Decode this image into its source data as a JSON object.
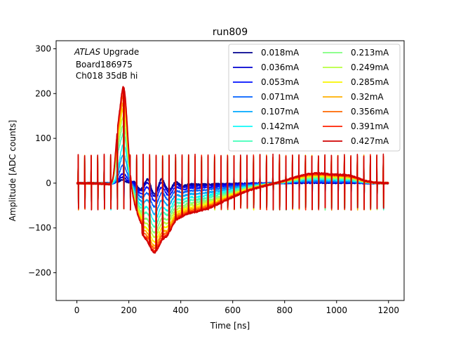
{
  "chart_data": {
    "type": "line",
    "title": "run809",
    "xlabel": "Time [ns]",
    "ylabel": "Amplitude [ADC counts]",
    "xlim": [
      -80,
      1260
    ],
    "ylim": [
      -262,
      318
    ],
    "xticks": [
      0,
      200,
      400,
      600,
      800,
      1000,
      1200
    ],
    "xtick_labels": [
      "0",
      "200",
      "400",
      "600",
      "800",
      "1000",
      "1200"
    ],
    "yticks": [
      -200,
      -100,
      0,
      100,
      200,
      300
    ],
    "ytick_labels": [
      "−200",
      "−100",
      "0",
      "100",
      "200",
      "300"
    ],
    "grid": false,
    "legend_position": "upper-right",
    "legend_columns": 2,
    "annotation": {
      "line1_italic": "ATLAS",
      "line1_rest": " Upgrade",
      "line2": " Board186975",
      "line3": " Ch018 35dB hi"
    },
    "pulse_model": {
      "period_ns": 25,
      "x_start": 0,
      "x_end": 1200,
      "spike_start": 5
    },
    "series": [
      {
        "name": "0.018mA",
        "color": "#00008f",
        "peak": 8,
        "undershoot": -5,
        "ringing": 42,
        "spike_high": 52,
        "spike_low": -55
      },
      {
        "name": "0.036mA",
        "color": "#0000d0",
        "peak": 15,
        "undershoot": -10,
        "ringing": 40,
        "spike_high": 50,
        "spike_low": -55
      },
      {
        "name": "0.053mA",
        "color": "#0010ff",
        "peak": 25,
        "undershoot": -18,
        "ringing": 38,
        "spike_high": 50,
        "spike_low": -55
      },
      {
        "name": "0.071mA",
        "color": "#0060ff",
        "peak": 45,
        "undershoot": -28,
        "ringing": 36,
        "spike_high": 52,
        "spike_low": -56
      },
      {
        "name": "0.107mA",
        "color": "#00a8ff",
        "peak": 70,
        "undershoot": -40,
        "ringing": 34,
        "spike_high": 55,
        "spike_low": -56
      },
      {
        "name": "0.142mA",
        "color": "#0ff8f8",
        "peak": 95,
        "undershoot": -52,
        "ringing": 32,
        "spike_high": 55,
        "spike_low": -57
      },
      {
        "name": "0.178mA",
        "color": "#40ffb8",
        "peak": 120,
        "undershoot": -62,
        "ringing": 30,
        "spike_high": 55,
        "spike_low": -57
      },
      {
        "name": "0.213mA",
        "color": "#7fff7f",
        "peak": 140,
        "undershoot": -72,
        "ringing": 28,
        "spike_high": 57,
        "spike_low": -57
      },
      {
        "name": "0.249mA",
        "color": "#b8ff40",
        "peak": 160,
        "undershoot": -80,
        "ringing": 26,
        "spike_high": 58,
        "spike_low": -57
      },
      {
        "name": "0.285mA",
        "color": "#f8f500",
        "peak": 180,
        "undershoot": -88,
        "ringing": 24,
        "spike_high": 60,
        "spike_low": -57
      },
      {
        "name": "0.32mA",
        "color": "#ffb000",
        "peak": 195,
        "undershoot": -95,
        "ringing": 22,
        "spike_high": 60,
        "spike_low": -57
      },
      {
        "name": "0.356mA",
        "color": "#ff6800",
        "peak": 210,
        "undershoot": -100,
        "ringing": 20,
        "spike_high": 60,
        "spike_low": -57
      },
      {
        "name": "0.391mA",
        "color": "#ff2000",
        "peak": 222,
        "undershoot": -105,
        "ringing": 18,
        "spike_high": 61,
        "spike_low": -57
      },
      {
        "name": "0.427mA",
        "color": "#d10000",
        "peak": 232,
        "undershoot": -108,
        "ringing": 16,
        "spike_high": 62,
        "spike_low": -57
      }
    ]
  }
}
